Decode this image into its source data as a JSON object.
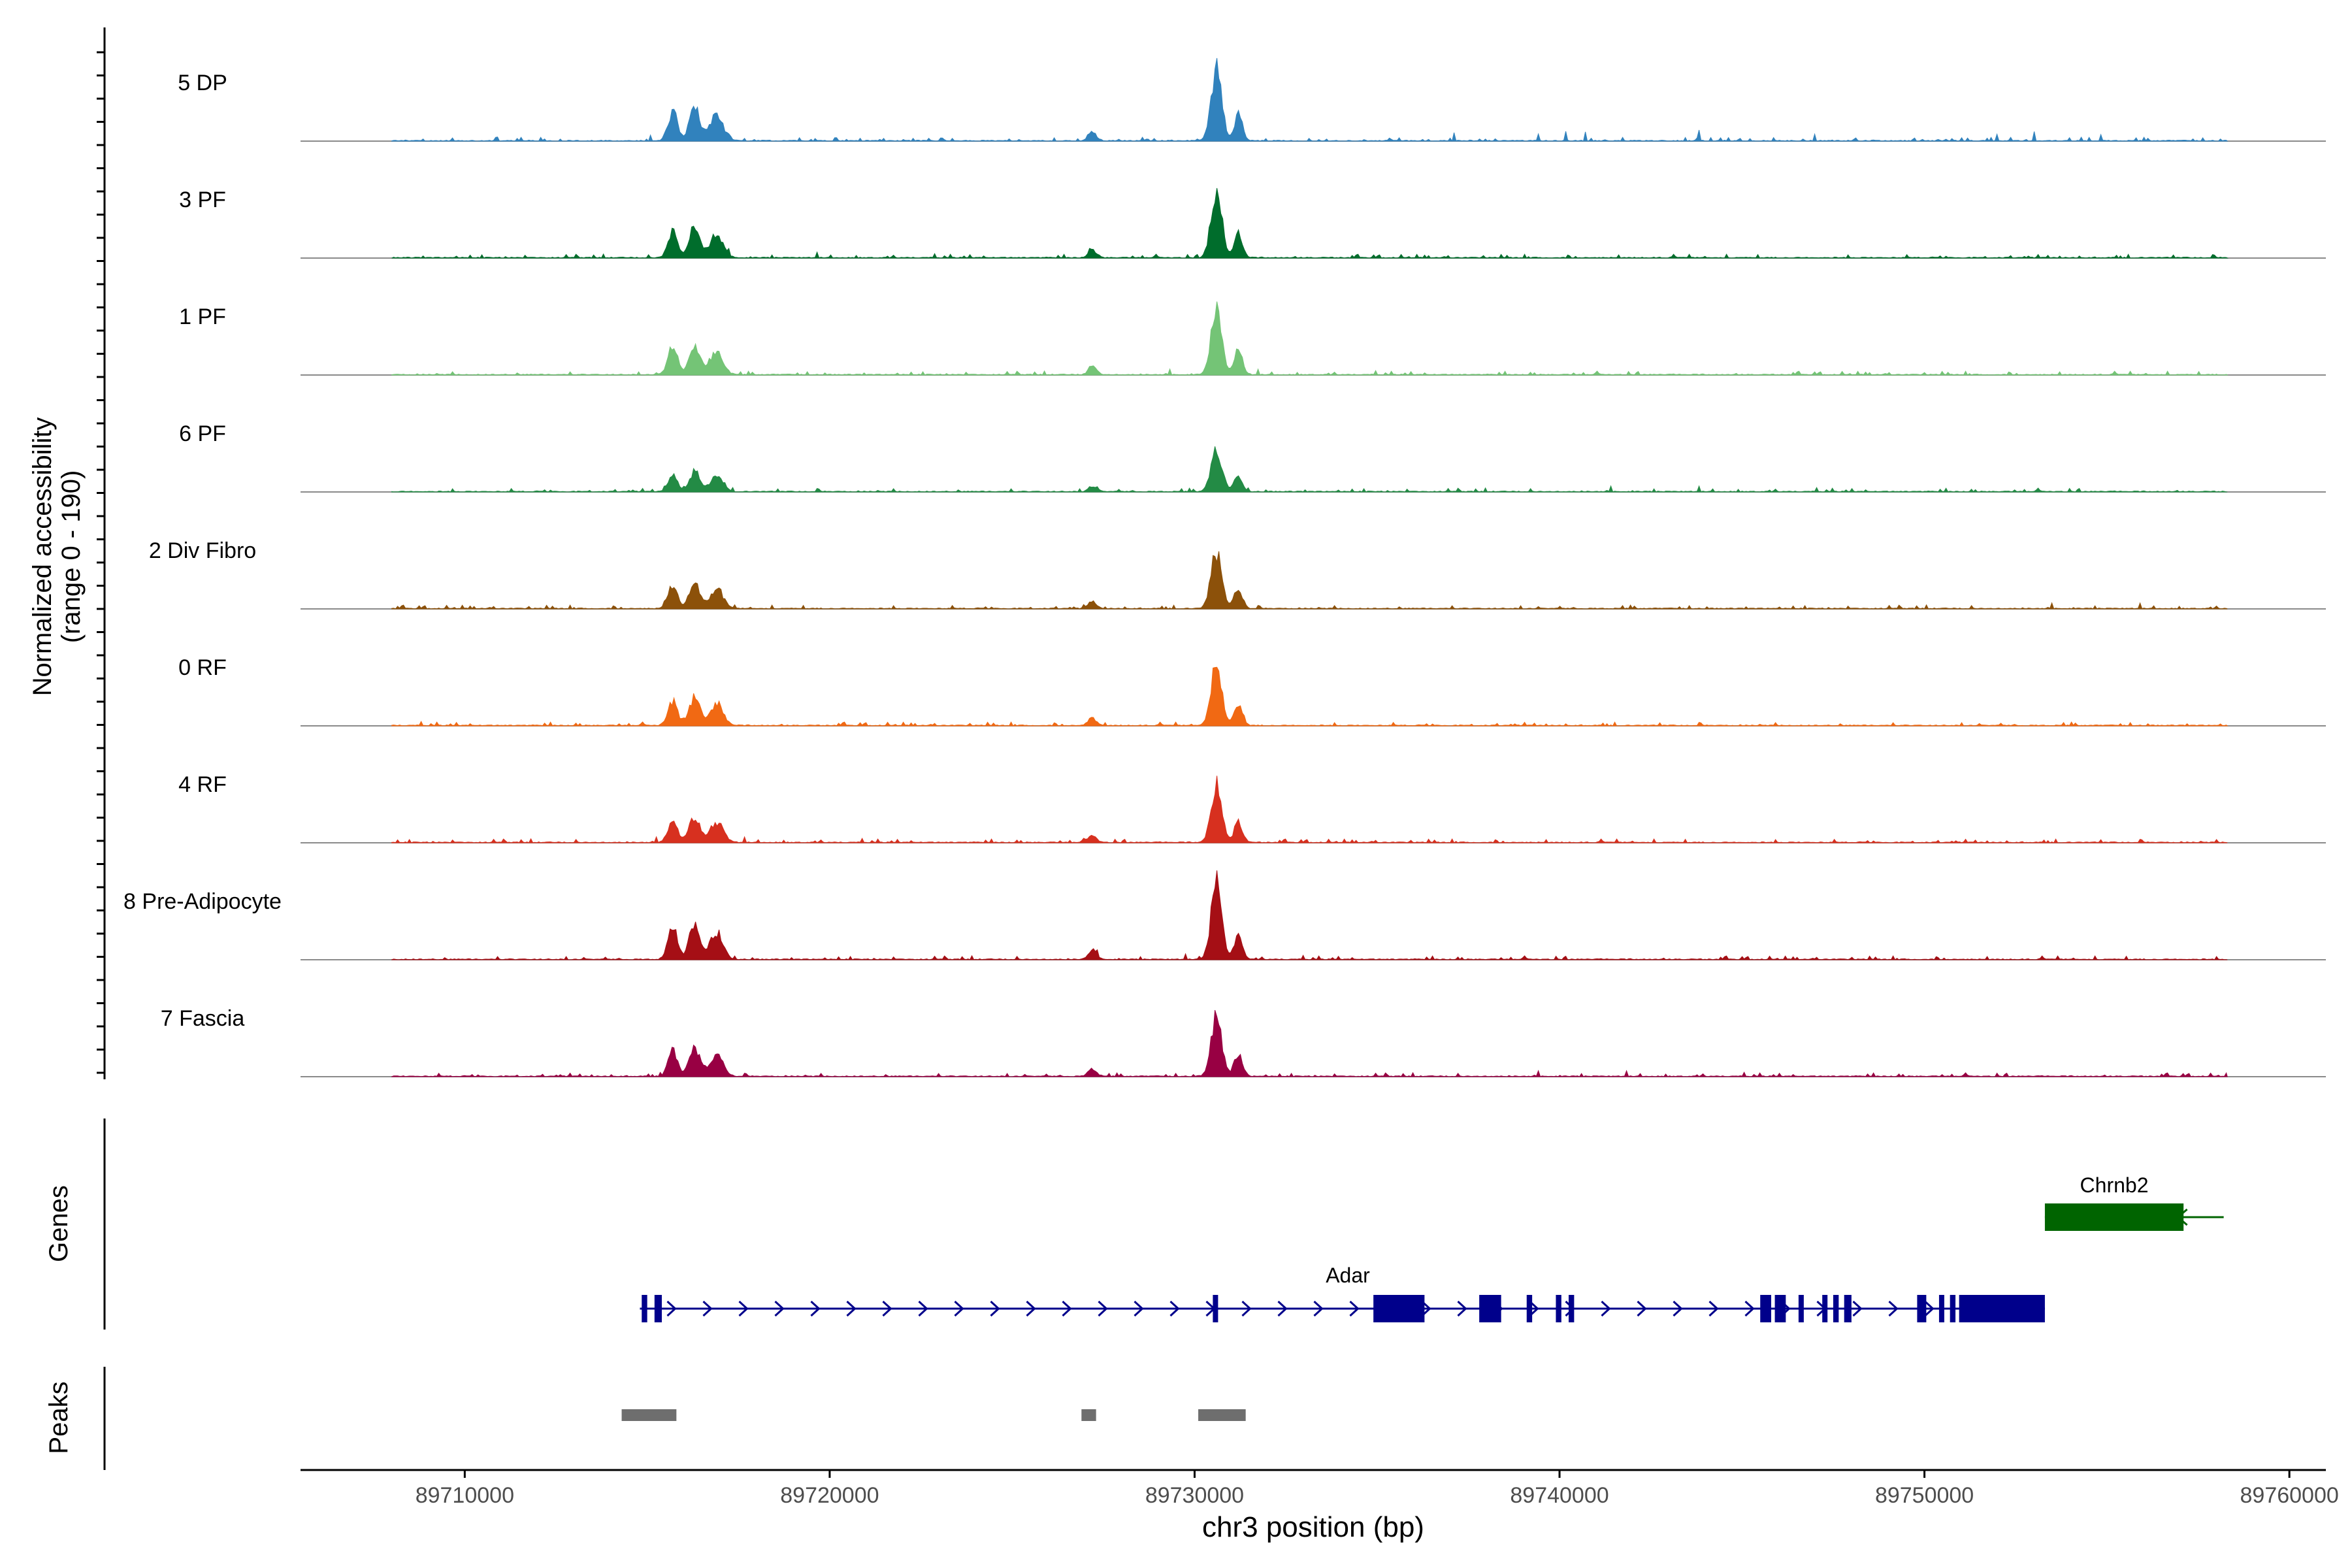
{
  "chart_data": {
    "type": "area",
    "title": "",
    "xlabel": "chr3 position (bp)",
    "ylabel_line1": "Normalized accessibility",
    "ylabel_line2": "(range 0 - 190)",
    "y_range": [
      0,
      190
    ],
    "x_range": [
      89705500,
      89761000
    ],
    "x_ticks": [
      89710000,
      89720000,
      89730000,
      89740000,
      89750000,
      89760000
    ],
    "x_tick_labels": [
      "89710000",
      "89720000",
      "89730000",
      "89740000",
      "89750000",
      "89760000"
    ],
    "tracks": [
      {
        "name": "5 DP",
        "color": "#3182BD",
        "scale": 1.0,
        "cell_type_index": 0
      },
      {
        "name": "3 PF",
        "color": "#006D2C",
        "scale": 0.92,
        "cell_type_index": 1
      },
      {
        "name": "1 PF",
        "color": "#74C476",
        "scale": 0.95,
        "cell_type_index": 2
      },
      {
        "name": "6 PF",
        "color": "#238B45",
        "scale": 0.6,
        "cell_type_index": 3
      },
      {
        "name": "2 Div Fibro",
        "color": "#8C510A",
        "scale": 0.78,
        "cell_type_index": 4
      },
      {
        "name": "0 RF",
        "color": "#F16913",
        "scale": 0.85,
        "cell_type_index": 5
      },
      {
        "name": "4 RF",
        "color": "#D7301F",
        "scale": 0.8,
        "cell_type_index": 6
      },
      {
        "name": "8 Pre-Adipocyte",
        "color": "#A50F15",
        "scale": 1.05,
        "cell_type_index": 7
      },
      {
        "name": "7 Fascia",
        "color": "#980043",
        "scale": 0.85,
        "cell_type_index": 8
      }
    ],
    "peak_regions": [
      {
        "start": 89715700,
        "height": 0.4,
        "width": 80
      },
      {
        "start": 89716300,
        "height": 0.45,
        "width": 90
      },
      {
        "start": 89716900,
        "height": 0.35,
        "width": 110
      },
      {
        "start": 89727200,
        "height": 0.12,
        "width": 70
      },
      {
        "start": 89730600,
        "height": 1.0,
        "width": 90
      },
      {
        "start": 89731200,
        "height": 0.35,
        "width": 70
      }
    ],
    "genes_track_label": "Genes",
    "genes": [
      {
        "name": "Adar",
        "strand": "+",
        "start": 89714800,
        "end": 89753300,
        "color": "#00008B",
        "exons": [
          [
            89714850,
            89715000
          ],
          [
            89715200,
            89715400
          ],
          [
            89730500,
            89730600
          ],
          [
            89734900,
            89736300
          ],
          [
            89737800,
            89738400
          ],
          [
            89739100,
            89739250
          ],
          [
            89739900,
            89740050
          ],
          [
            89740250,
            89740400
          ],
          [
            89745500,
            89745800
          ],
          [
            89745900,
            89746200
          ],
          [
            89746550,
            89746650
          ],
          [
            89747200,
            89747300
          ],
          [
            89747500,
            89747650
          ],
          [
            89747800,
            89748000
          ],
          [
            89749800,
            89750050
          ],
          [
            89750400,
            89750500
          ],
          [
            89750700,
            89750850
          ],
          [
            89750950,
            89753300
          ]
        ]
      },
      {
        "name": "Chrnb2",
        "strand": "-",
        "start": 89753300,
        "end": 89758200,
        "color": "#006400",
        "exons": [
          [
            89753300,
            89757100
          ]
        ]
      }
    ],
    "peaks_track_label": "Peaks",
    "peaks_color": "#6E6E6E",
    "peaks": [
      [
        89714300,
        89715800
      ],
      [
        89726900,
        89727300
      ],
      [
        89730100,
        89731400
      ]
    ]
  }
}
